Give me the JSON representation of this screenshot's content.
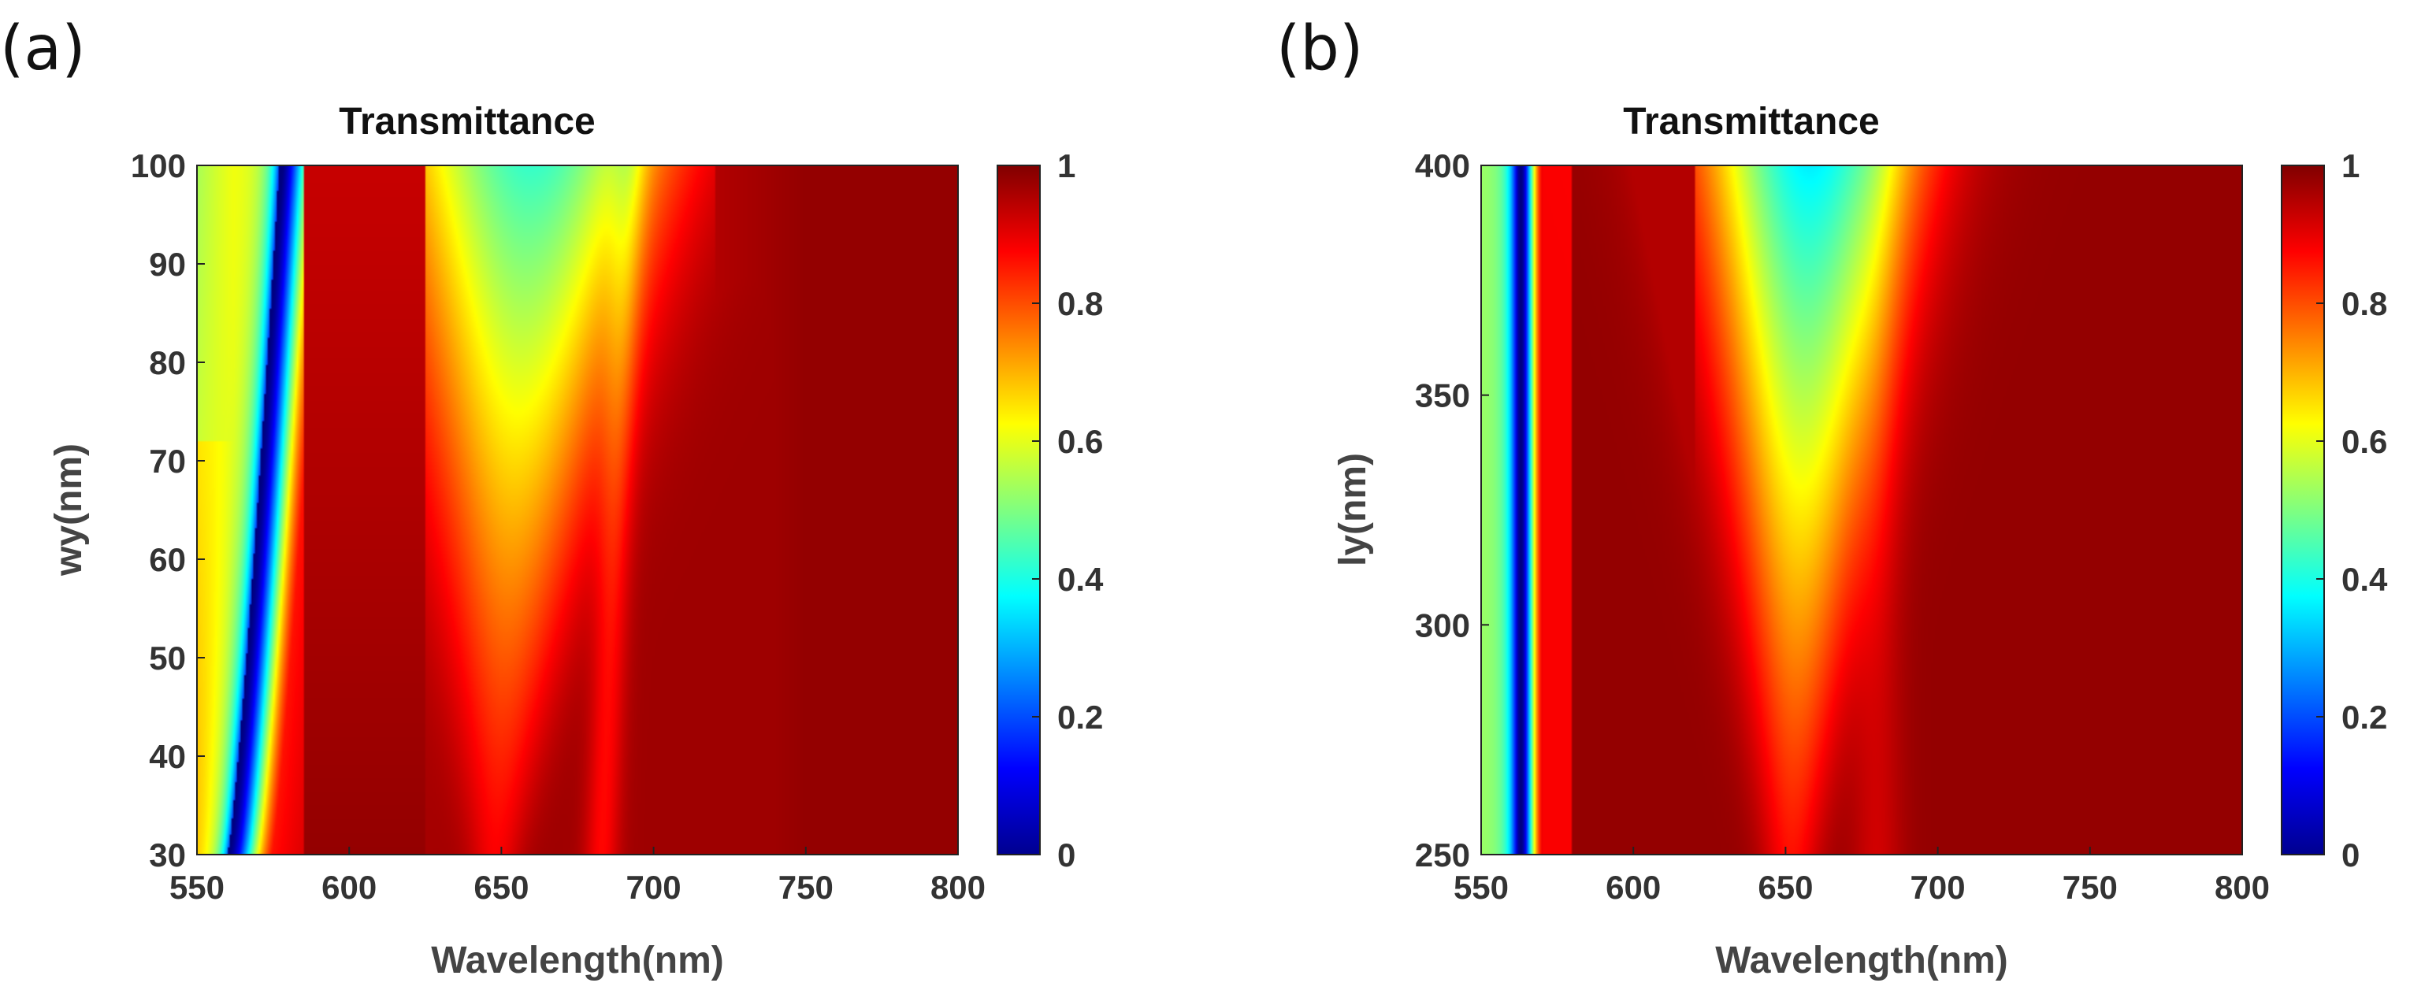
{
  "chart_data": [
    {
      "panel_label": "(a)",
      "type": "heatmap",
      "title": "Transmittance",
      "xlabel": "Wavelength(nm)",
      "ylabel": "wy(nm)",
      "xlim": [
        550,
        800
      ],
      "ylim": [
        30,
        100
      ],
      "xticks": [
        "550",
        "600",
        "650",
        "700",
        "750",
        "800"
      ],
      "yticks": [
        "30",
        "40",
        "50",
        "60",
        "70",
        "80",
        "90",
        "100"
      ],
      "colorbar": {
        "range": [
          0,
          1
        ],
        "ticks": [
          "0",
          "0.2",
          "0.4",
          "0.6",
          "0.8",
          "1"
        ],
        "colormap": "jet"
      },
      "features": [
        {
          "name": "narrow dip",
          "position_at_ymin": 560,
          "position_at_ymax": 577,
          "min_value": 0.0
        },
        {
          "name": "broad dip",
          "position_at_ymin": 648,
          "position_at_ymax": 660,
          "min_value_at_ymin": 0.88,
          "min_value_at_ymax": 0.5
        },
        {
          "name": "secondary dip",
          "position_at_ymin": 683,
          "position_at_ymax": 692,
          "min_value": 0.85
        }
      ]
    },
    {
      "panel_label": "(b)",
      "type": "heatmap",
      "title": "Transmittance",
      "xlabel": "Wavelength(nm)",
      "ylabel": "ly(nm)",
      "xlim": [
        550,
        800
      ],
      "ylim": [
        250,
        400
      ],
      "xticks": [
        "550",
        "600",
        "650",
        "700",
        "750",
        "800"
      ],
      "yticks": [
        "250",
        "300",
        "350",
        "400"
      ],
      "colorbar": {
        "range": [
          0,
          1
        ],
        "ticks": [
          "0",
          "0.2",
          "0.4",
          "0.6",
          "0.8",
          "1"
        ],
        "colormap": "jet"
      },
      "features": [
        {
          "name": "narrow dip",
          "position": 563,
          "min_value": 0.0
        },
        {
          "name": "broad dip",
          "position_at_ymin": 652,
          "position_at_ymax": 658,
          "min_value_at_ymin": 0.85,
          "min_value_at_ymax": 0.36
        }
      ]
    }
  ]
}
